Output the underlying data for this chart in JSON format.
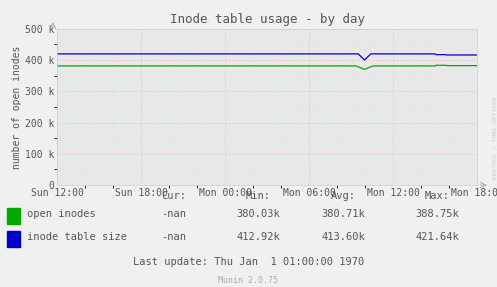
{
  "title": "Inode table usage - by day",
  "ylabel": "number of open inodes",
  "background_color": "#f0f0f0",
  "plot_bg_color": "#e8e8e8",
  "grid_color": "#ff9999",
  "ylim": [
    0,
    500000
  ],
  "yticks": [
    0,
    100000,
    200000,
    300000,
    400000,
    500000
  ],
  "ytick_labels": [
    "0",
    "100 k",
    "200 k",
    "300 k",
    "400 k",
    "500 k"
  ],
  "xtick_labels": [
    "Sun 12:00",
    "Sun 18:00",
    "Mon 00:00",
    "Mon 06:00",
    "Mon 12:00",
    "Mon 18:00"
  ],
  "open_inodes_color": "#00aa00",
  "inode_table_color": "#0000cc",
  "open_inodes_value": 381000,
  "inode_table_value": 419500,
  "legend_labels": [
    "open inodes",
    "inode table size"
  ],
  "footer_text": "Munin 2.0.75",
  "table_headers": [
    "Cur:",
    "Min:",
    "Avg:",
    "Max:"
  ],
  "open_inodes_stats": [
    "-nan",
    "380.03k",
    "380.71k",
    "388.75k"
  ],
  "inode_table_stats": [
    "-nan",
    "412.92k",
    "413.60k",
    "421.64k"
  ],
  "last_update": "Last update: Thu Jan  1 01:00:00 1970",
  "rrdtool_text": "RRDTOOL / TOBI OETIKER",
  "text_color": "#555555",
  "minor_grid_color": "#cccccc"
}
